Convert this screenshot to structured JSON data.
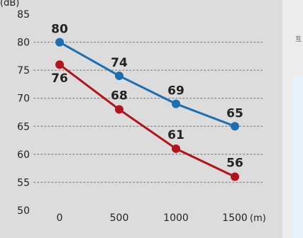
{
  "chart_data": {
    "type": "line",
    "y_unit": "(dB)",
    "x_unit": "(m)",
    "categories": [
      "0",
      "500",
      "1000",
      "1500"
    ],
    "ylim": [
      50,
      85
    ],
    "yticks": [
      50,
      55,
      60,
      65,
      70,
      75,
      80,
      85
    ],
    "grid": "dotted horizontal",
    "series": [
      {
        "color": "#1a6fb3",
        "values": [
          80,
          74,
          69,
          65
        ],
        "labels": [
          "80",
          "74",
          "69",
          "65"
        ]
      },
      {
        "color": "#b5121b",
        "values": [
          76,
          68,
          61,
          56
        ],
        "labels": [
          "76",
          "68",
          "61",
          "56"
        ]
      }
    ]
  },
  "side_panel": {
    "glyph": "互"
  }
}
